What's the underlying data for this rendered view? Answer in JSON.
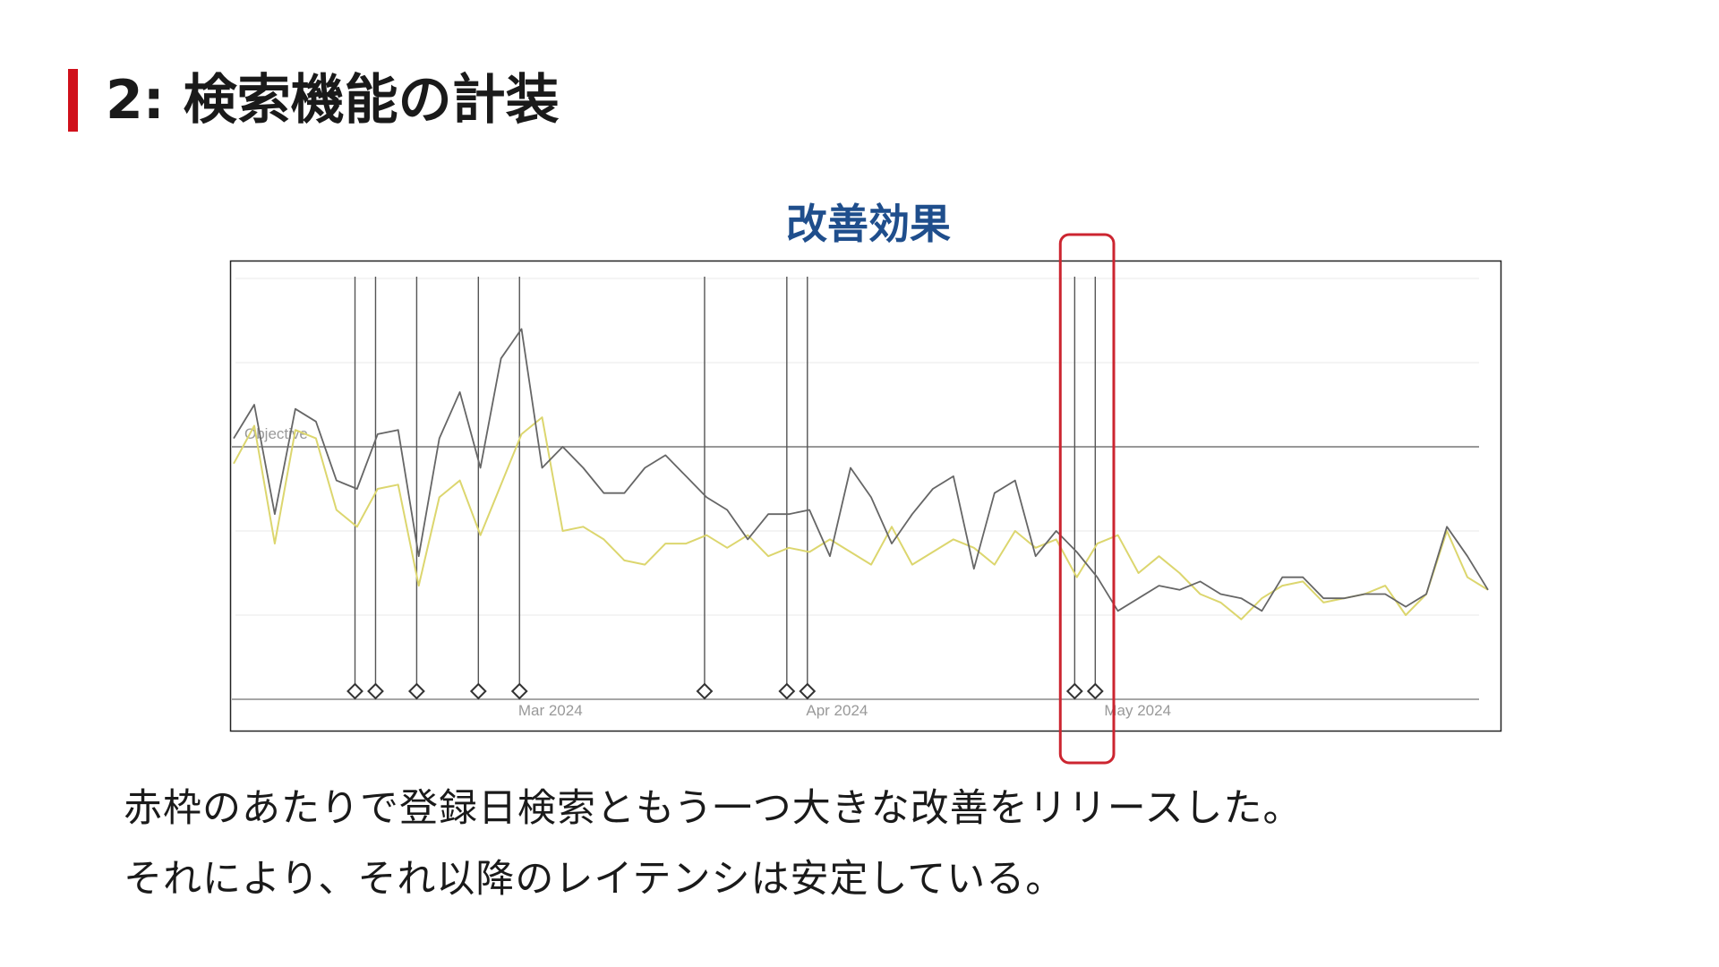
{
  "slide": {
    "title": "2: 検索機能の計装",
    "accent_color": "#d0101b"
  },
  "chart_data": {
    "type": "line",
    "title": "改善効果",
    "title_color": "#1f4e8c",
    "x_tick_labels": [
      "Mar 2024",
      "Apr 2024",
      "May 2024"
    ],
    "y_tick_labels": [],
    "grid": true,
    "reference_line": {
      "label": "Objective",
      "value": 60
    },
    "ylim": [
      0,
      100
    ],
    "x": [
      1,
      2,
      3,
      4,
      5,
      6,
      7,
      8,
      9,
      10,
      11,
      12,
      13,
      14,
      15,
      16,
      17,
      18,
      19,
      20,
      21,
      22,
      23,
      24,
      25,
      26,
      27,
      28,
      29,
      30,
      31,
      32,
      33,
      34,
      35,
      36,
      37,
      38,
      39,
      40,
      41,
      42,
      43,
      44,
      45,
      46,
      47,
      48,
      49,
      50,
      51,
      52,
      53,
      54,
      55,
      56,
      57,
      58,
      59,
      60,
      61,
      62
    ],
    "series": [
      {
        "color": "#666666",
        "values": [
          62,
          70,
          44,
          69,
          66,
          52,
          50,
          63,
          64,
          34,
          62,
          73,
          55,
          81,
          88,
          55,
          60,
          55,
          49,
          49,
          55,
          58,
          53,
          48,
          45,
          38,
          44,
          44,
          45,
          34,
          55,
          48,
          37,
          44,
          50,
          53,
          31,
          49,
          52,
          34,
          40,
          35,
          29,
          21,
          24,
          27,
          26,
          28,
          25,
          24,
          21,
          29,
          29,
          24,
          24,
          25,
          25,
          22,
          25,
          41,
          34,
          26
        ]
      },
      {
        "color": "#dcd66e",
        "values": [
          56,
          65,
          37,
          64,
          62,
          45,
          41,
          50,
          51,
          27,
          48,
          52,
          39,
          51,
          63,
          67,
          40,
          41,
          38,
          33,
          32,
          37,
          37,
          39,
          36,
          39,
          34,
          36,
          35,
          38,
          35,
          32,
          41,
          32,
          35,
          38,
          36,
          32,
          40,
          36,
          38,
          29,
          37,
          39,
          30,
          34,
          30,
          25,
          23,
          19,
          24,
          27,
          28,
          23,
          24,
          25,
          27,
          20,
          25,
          40,
          29,
          26
        ]
      }
    ],
    "annotation_markers_x": [
      6.9,
      7.9,
      9.9,
      12.9,
      14.9,
      23.9,
      27.9,
      28.9,
      41.9,
      42.9
    ],
    "highlight_box": {
      "x_from": 41.2,
      "x_to": 43.8,
      "color": "#cc2530"
    }
  },
  "body": {
    "line1": "赤枠のあたりで登録日検索ともう一つ大きな改善をリリースした。",
    "line2": "それにより、それ以降のレイテンシは安定している。"
  }
}
